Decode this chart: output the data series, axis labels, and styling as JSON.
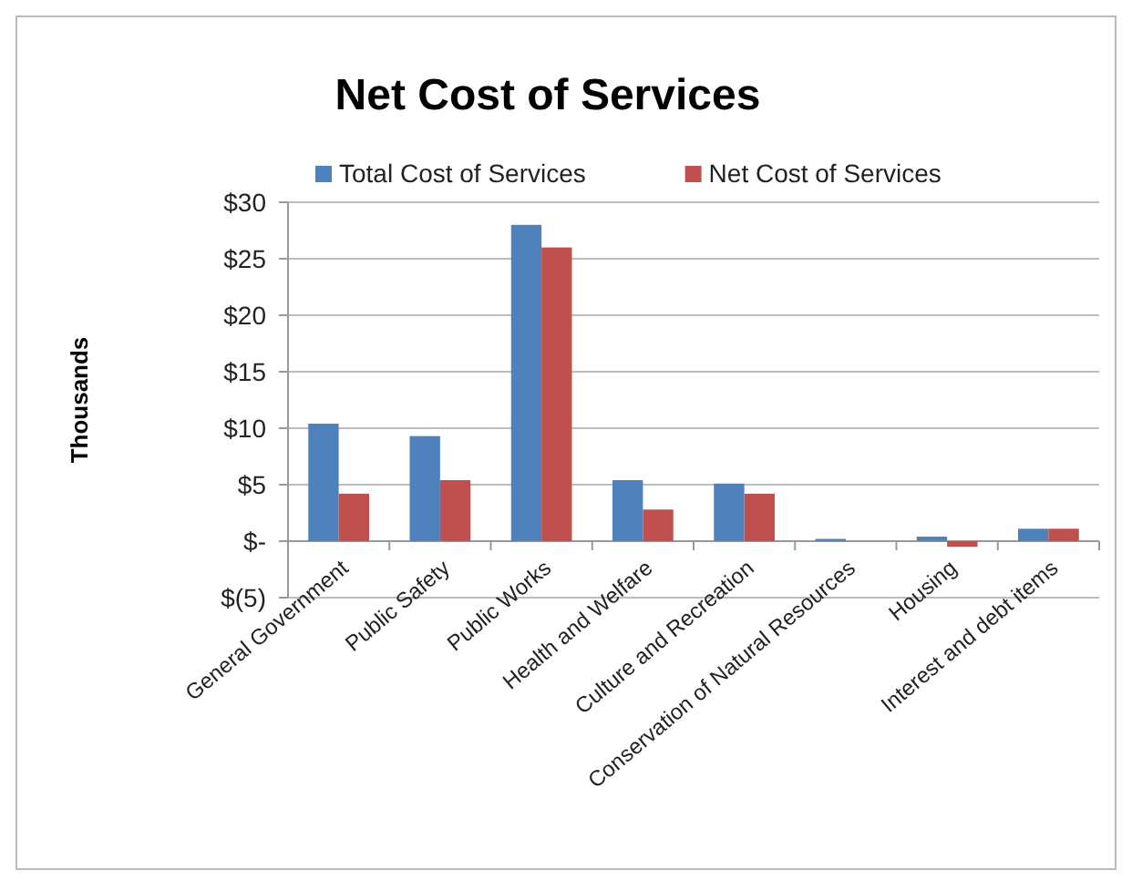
{
  "chart_data": {
    "type": "bar",
    "title": "Net Cost of Services",
    "ylabel": "Thousands",
    "categories": [
      "General Government",
      "Public Safety",
      "Public Works",
      "Health and Welfare",
      "Culture and Recreation",
      "Conservation of Natural Resources",
      "Housing",
      "Interest and debt items"
    ],
    "series": [
      {
        "name": "Total Cost of Services",
        "color": "#4f81bd",
        "values": [
          10.4,
          9.3,
          28.0,
          5.4,
          5.1,
          0.2,
          0.4,
          1.1
        ]
      },
      {
        "name": "Net Cost of Services",
        "color": "#c0504d",
        "values": [
          4.2,
          5.4,
          26.0,
          2.8,
          4.2,
          0,
          -0.5,
          1.1
        ]
      }
    ],
    "ylim": [
      -5,
      30
    ],
    "yticks": [
      {
        "value": -5,
        "label": "$(5)"
      },
      {
        "value": 0,
        "label": "$-"
      },
      {
        "value": 5,
        "label": "$5"
      },
      {
        "value": 10,
        "label": "$10"
      },
      {
        "value": 15,
        "label": "$15"
      },
      {
        "value": 20,
        "label": "$20"
      },
      {
        "value": 25,
        "label": "$25"
      },
      {
        "value": 30,
        "label": "$30"
      }
    ],
    "grid": "y",
    "legend": "top"
  }
}
